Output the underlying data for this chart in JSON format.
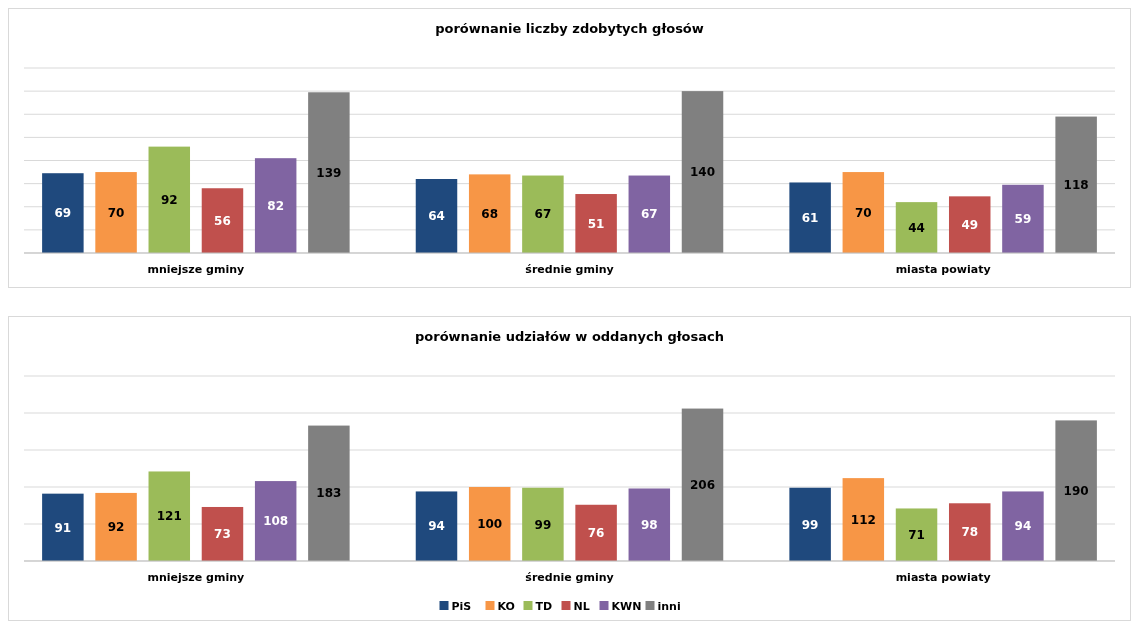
{
  "chart_data": [
    {
      "type": "bar",
      "title": "porównanie liczby zdobytych głosów",
      "categories": [
        "mniejsze gminy",
        "średnie gminy",
        "miasta powiaty"
      ],
      "series": [
        {
          "color": "#1f497d",
          "values": [
            69,
            64,
            61
          ]
        },
        {
          "color": "#f79646",
          "values": [
            70,
            68,
            70
          ]
        },
        {
          "color": "#9bbb59",
          "values": [
            92,
            67,
            44
          ]
        },
        {
          "color": "#c0504d",
          "values": [
            56,
            51,
            49
          ]
        },
        {
          "color": "#8064a2",
          "values": [
            82,
            67,
            59
          ]
        },
        {
          "color": "#808080",
          "values": [
            139,
            140,
            118
          ]
        }
      ],
      "ylim": [
        0,
        160
      ],
      "yticks": [
        {
          "value": 0,
          "label": null
        },
        {
          "value": 20,
          "label": null
        },
        {
          "value": 40,
          "label": null
        },
        {
          "value": 60,
          "label": null
        },
        {
          "value": 80,
          "label": null
        },
        {
          "value": 100,
          "label": null
        },
        {
          "value": 120,
          "label": null
        },
        {
          "value": 140,
          "label": null
        },
        {
          "value": 160,
          "label": null
        }
      ],
      "tick_labels": "x",
      "grid": "y",
      "data_labels": true,
      "legend": false
    },
    {
      "type": "bar",
      "title": "porównanie udziałów w oddanych głosach",
      "categories": [
        "mniejsze gminy",
        "średnie gminy",
        "miasta powiaty"
      ],
      "series": [
        {
          "name": "PiS",
          "color": "#1f497d",
          "values": [
            91,
            94,
            99
          ]
        },
        {
          "name": "KO",
          "color": "#f79646",
          "values": [
            92,
            100,
            112
          ]
        },
        {
          "name": "TD",
          "color": "#9bbb59",
          "values": [
            121,
            99,
            71
          ]
        },
        {
          "name": "NL",
          "color": "#c0504d",
          "values": [
            73,
            76,
            78
          ]
        },
        {
          "name": "KWN",
          "color": "#8064a2",
          "values": [
            108,
            98,
            94
          ]
        },
        {
          "name": "inni",
          "color": "#808080",
          "values": [
            183,
            206,
            190
          ]
        }
      ],
      "ylim": [
        0,
        250
      ],
      "yticks": [
        {
          "value": 0,
          "label": null
        },
        {
          "value": 50,
          "label": null
        },
        {
          "value": 100,
          "label": null
        },
        {
          "value": 150,
          "label": null
        },
        {
          "value": 200,
          "label": null
        },
        {
          "value": 250,
          "label": null
        }
      ],
      "tick_labels": "x",
      "grid": "y",
      "data_labels": true,
      "legend": "bottom"
    }
  ]
}
